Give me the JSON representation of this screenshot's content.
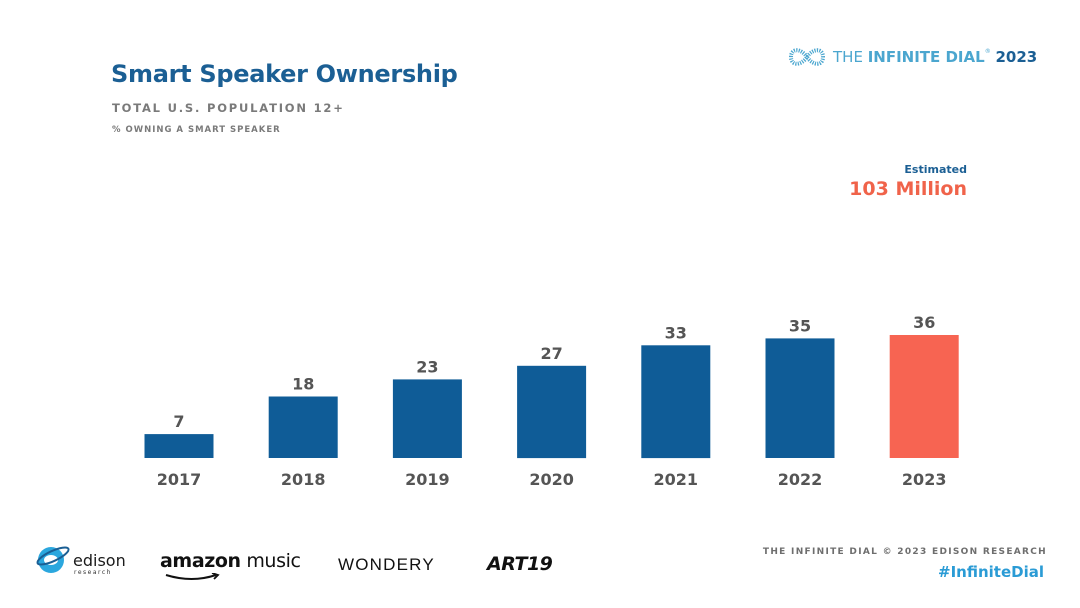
{
  "header": {
    "title": "Smart Speaker Ownership",
    "subtitle": "TOTAL U.S. POPULATION 12+",
    "note": "% OWNING A SMART SPEAKER"
  },
  "brand": {
    "prefix": "THE ",
    "name": "INFINITE DIAL",
    "mark": "®",
    "year": "2023"
  },
  "estimate": {
    "label": "Estimated",
    "value": "103 Million"
  },
  "chart_data": {
    "type": "bar",
    "categories": [
      "2017",
      "2018",
      "2019",
      "2020",
      "2021",
      "2022",
      "2023"
    ],
    "values": [
      7,
      18,
      23,
      27,
      33,
      35,
      36
    ],
    "title": "Smart Speaker Ownership",
    "xlabel": "",
    "ylabel": "",
    "ylim": [
      0,
      36
    ],
    "highlight_index": 6,
    "colors": {
      "bar": "#0f5c97",
      "highlight": "#f76452",
      "value_label": "#555555",
      "tick_label": "#555555"
    },
    "grid": false,
    "legend": "none"
  },
  "logos": {
    "edison": "edison",
    "edison_sub": "research",
    "amazon_a": "amazon",
    "amazon_b": "music",
    "wondery": "WONDERY",
    "art19": "ART19"
  },
  "footer": {
    "copyright": "THE INFINITE DIAL   © 2023 EDISON RESEARCH",
    "hashtag": "#InfiniteDial"
  }
}
